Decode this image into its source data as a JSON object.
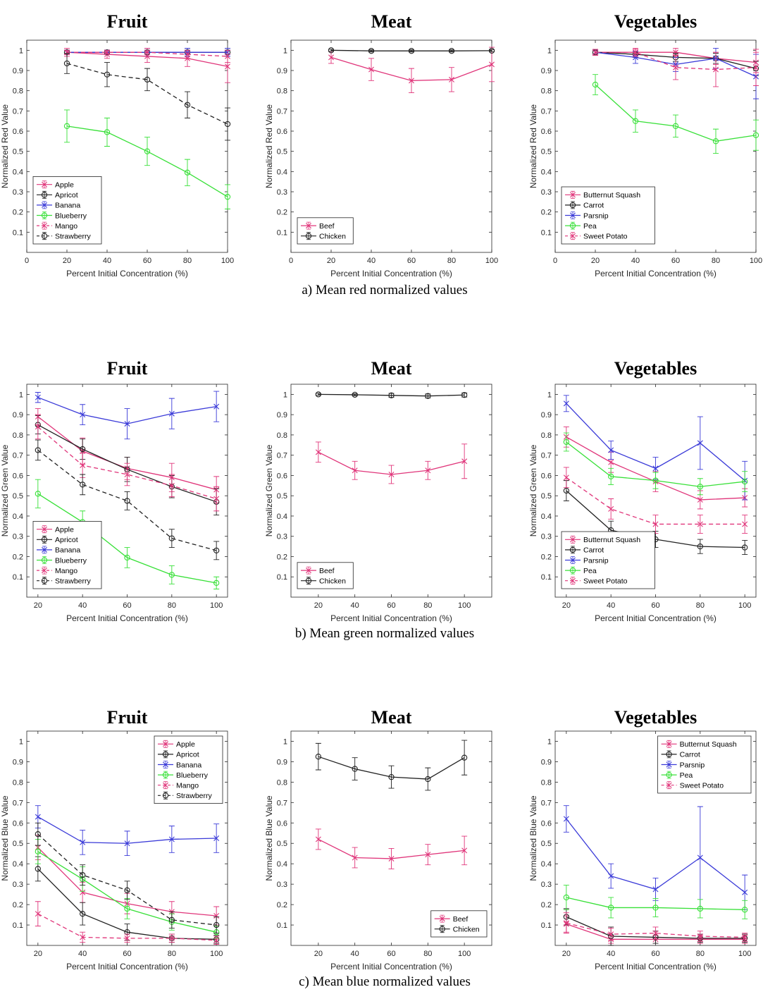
{
  "captions": [
    "a) Mean red normalized values",
    "b) Mean green normalized values",
    "c) Mean blue normalized values"
  ],
  "colors": {
    "Apple": "#e0357a",
    "Apricot": "#222222",
    "Banana": "#3a3ad8",
    "Blueberry": "#38e038",
    "Mango": "#e0357a",
    "Strawberry": "#222222",
    "Beef": "#e0357a",
    "Chicken": "#222222",
    "Butternut Squash": "#e0357a",
    "Carrot": "#222222",
    "Parsnip": "#3a3ad8",
    "Pea": "#38e038",
    "Sweet Potato": "#e0357a"
  },
  "chart_data": [
    {
      "type": "line",
      "title": "Fruit",
      "xlabel": "Percent Initial Concentration (%)",
      "ylabel": "Normalized Red Value",
      "xlim": [
        0,
        100
      ],
      "ylim": [
        0,
        1.05
      ],
      "xticks": [
        0,
        20,
        40,
        60,
        80,
        100
      ],
      "legend": "bottom-left",
      "x": [
        20,
        40,
        60,
        80,
        100
      ],
      "series": [
        {
          "name": "Apple",
          "values": [
            0.99,
            0.98,
            0.97,
            0.96,
            0.92
          ],
          "err": [
            0.02,
            0.02,
            0.03,
            0.04,
            0.08
          ],
          "marker": "x",
          "dash": false
        },
        {
          "name": "Apricot",
          "values": [
            0.99,
            0.99,
            0.99,
            0.99,
            0.99
          ],
          "err": [
            0.01,
            0.01,
            0.02,
            0.02,
            0.02
          ],
          "marker": "o",
          "dash": false
        },
        {
          "name": "Banana",
          "values": [
            0.99,
            0.99,
            0.99,
            0.99,
            0.99
          ],
          "err": [
            0.01,
            0.01,
            0.02,
            0.02,
            0.02
          ],
          "marker": "x",
          "dash": false
        },
        {
          "name": "Blueberry",
          "values": [
            0.625,
            0.595,
            0.5,
            0.395,
            0.275
          ],
          "err": [
            0.08,
            0.07,
            0.07,
            0.065,
            0.06
          ],
          "marker": "o",
          "dash": false
        },
        {
          "name": "Mango",
          "values": [
            0.99,
            0.99,
            0.99,
            0.98,
            0.97
          ],
          "err": [
            0.01,
            0.01,
            0.02,
            0.02,
            0.03
          ],
          "marker": "x",
          "dash": true
        },
        {
          "name": "Strawberry",
          "values": [
            0.935,
            0.88,
            0.855,
            0.73,
            0.635
          ],
          "err": [
            0.05,
            0.06,
            0.055,
            0.065,
            0.08
          ],
          "marker": "o",
          "dash": true
        }
      ]
    },
    {
      "type": "line",
      "title": "Meat",
      "xlabel": "Percent Initial Concentration (%)",
      "ylabel": "Normalized Red Value",
      "xlim": [
        0,
        100
      ],
      "ylim": [
        0,
        1.05
      ],
      "xticks": [
        0,
        20,
        40,
        60,
        80,
        100
      ],
      "legend": "bottom-left",
      "x": [
        20,
        40,
        60,
        80,
        100
      ],
      "series": [
        {
          "name": "Beef",
          "values": [
            0.965,
            0.905,
            0.85,
            0.855,
            0.93
          ],
          "err": [
            0.03,
            0.055,
            0.06,
            0.06,
            0.085
          ],
          "marker": "x",
          "dash": false
        },
        {
          "name": "Chicken",
          "values": [
            1.0,
            0.997,
            0.997,
            0.997,
            0.998
          ],
          "err": [
            0.005,
            0.005,
            0.005,
            0.005,
            0.005
          ],
          "marker": "o",
          "dash": false
        }
      ]
    },
    {
      "type": "line",
      "title": "Vegetables",
      "xlabel": "Percent Initial Concentration (%)",
      "ylabel": "Normalized Red Value",
      "xlim": [
        0,
        100
      ],
      "ylim": [
        0,
        1.05
      ],
      "xticks": [
        0,
        20,
        40,
        60,
        80,
        100
      ],
      "legend": "bottom-left",
      "x": [
        20,
        40,
        60,
        80,
        100
      ],
      "series": [
        {
          "name": "Butternut Squash",
          "values": [
            0.99,
            0.99,
            0.99,
            0.96,
            0.94
          ],
          "err": [
            0.01,
            0.015,
            0.02,
            0.03,
            0.05
          ],
          "marker": "x",
          "dash": false
        },
        {
          "name": "Carrot",
          "values": [
            0.99,
            0.98,
            0.965,
            0.96,
            0.91
          ],
          "err": [
            0.01,
            0.015,
            0.02,
            0.025,
            0.035
          ],
          "marker": "o",
          "dash": false
        },
        {
          "name": "Parsnip",
          "values": [
            0.99,
            0.965,
            0.93,
            0.96,
            0.87
          ],
          "err": [
            0.015,
            0.03,
            0.035,
            0.05,
            0.11
          ],
          "marker": "x",
          "dash": false
        },
        {
          "name": "Pea",
          "values": [
            0.83,
            0.65,
            0.625,
            0.55,
            0.58
          ],
          "err": [
            0.05,
            0.055,
            0.055,
            0.06,
            0.075
          ],
          "marker": "o",
          "dash": false
        },
        {
          "name": "Sweet Potato",
          "values": [
            0.99,
            0.99,
            0.915,
            0.905,
            0.915
          ],
          "err": [
            0.015,
            0.02,
            0.06,
            0.085,
            0.09
          ],
          "marker": "x",
          "dash": true
        }
      ]
    },
    {
      "type": "line",
      "title": "Fruit",
      "xlabel": "Percent Initial Concentration (%)",
      "ylabel": "Normalized Green Value",
      "xlim": [
        15,
        105
      ],
      "ylim": [
        0,
        1.05
      ],
      "xticks": [
        20,
        40,
        60,
        80,
        100
      ],
      "legend": "bottom-left",
      "x": [
        20,
        40,
        60,
        80,
        100
      ],
      "series": [
        {
          "name": "Apple",
          "values": [
            0.89,
            0.72,
            0.635,
            0.59,
            0.53
          ],
          "err": [
            0.04,
            0.065,
            0.055,
            0.07,
            0.065
          ],
          "marker": "x",
          "dash": false
        },
        {
          "name": "Apricot",
          "values": [
            0.85,
            0.73,
            0.63,
            0.545,
            0.47
          ],
          "err": [
            0.045,
            0.05,
            0.06,
            0.055,
            0.065
          ],
          "marker": "o",
          "dash": false
        },
        {
          "name": "Banana",
          "values": [
            0.985,
            0.9,
            0.855,
            0.905,
            0.94
          ],
          "err": [
            0.025,
            0.05,
            0.075,
            0.075,
            0.075
          ],
          "marker": "x",
          "dash": false
        },
        {
          "name": "Blueberry",
          "values": [
            0.51,
            0.37,
            0.195,
            0.11,
            0.07
          ],
          "err": [
            0.07,
            0.055,
            0.05,
            0.045,
            0.03
          ],
          "marker": "o",
          "dash": false
        },
        {
          "name": "Mango",
          "values": [
            0.84,
            0.65,
            0.605,
            0.55,
            0.485
          ],
          "err": [
            0.06,
            0.06,
            0.055,
            0.055,
            0.06
          ],
          "marker": "x",
          "dash": true
        },
        {
          "name": "Strawberry",
          "values": [
            0.725,
            0.555,
            0.475,
            0.29,
            0.23
          ],
          "err": [
            0.05,
            0.05,
            0.045,
            0.045,
            0.045
          ],
          "marker": "o",
          "dash": true
        }
      ]
    },
    {
      "type": "line",
      "title": "Meat",
      "xlabel": "Percent Initial Concentration (%)",
      "ylabel": "Normalized Green Value",
      "xlim": [
        5,
        115
      ],
      "ylim": [
        0,
        1.05
      ],
      "xticks": [
        20,
        40,
        60,
        80,
        100
      ],
      "legend": "bottom-left",
      "x": [
        20,
        40,
        60,
        80,
        100
      ],
      "series": [
        {
          "name": "Beef",
          "values": [
            0.715,
            0.625,
            0.605,
            0.625,
            0.67
          ],
          "err": [
            0.05,
            0.045,
            0.045,
            0.045,
            0.085
          ],
          "marker": "x",
          "dash": false
        },
        {
          "name": "Chicken",
          "values": [
            1.0,
            0.998,
            0.995,
            0.992,
            0.997
          ],
          "err": [
            0.005,
            0.005,
            0.01,
            0.01,
            0.01
          ],
          "marker": "o",
          "dash": false
        }
      ]
    },
    {
      "type": "line",
      "title": "Vegetables",
      "xlabel": "Percent Initial Concentration (%)",
      "ylabel": "Normalized Green Value",
      "xlim": [
        15,
        105
      ],
      "ylim": [
        0,
        1.05
      ],
      "xticks": [
        20,
        40,
        60,
        80,
        100
      ],
      "legend": "bottom-left",
      "x": [
        20,
        40,
        60,
        80,
        100
      ],
      "series": [
        {
          "name": "Butternut Squash",
          "values": [
            0.79,
            0.665,
            0.57,
            0.48,
            0.49
          ],
          "err": [
            0.05,
            0.05,
            0.05,
            0.045,
            0.045
          ],
          "marker": "x",
          "dash": false
        },
        {
          "name": "Carrot",
          "values": [
            0.525,
            0.33,
            0.285,
            0.25,
            0.245
          ],
          "err": [
            0.05,
            0.045,
            0.04,
            0.035,
            0.035
          ],
          "marker": "o",
          "dash": false
        },
        {
          "name": "Parsnip",
          "values": [
            0.955,
            0.725,
            0.635,
            0.76,
            0.575
          ],
          "err": [
            0.04,
            0.045,
            0.055,
            0.13,
            0.095
          ],
          "marker": "x",
          "dash": false
        },
        {
          "name": "Pea",
          "values": [
            0.765,
            0.595,
            0.575,
            0.545,
            0.57
          ],
          "err": [
            0.045,
            0.04,
            0.04,
            0.04,
            0.05
          ],
          "marker": "o",
          "dash": false
        },
        {
          "name": "Sweet Potato",
          "values": [
            0.59,
            0.435,
            0.36,
            0.36,
            0.36
          ],
          "err": [
            0.05,
            0.05,
            0.045,
            0.045,
            0.045
          ],
          "marker": "x",
          "dash": true
        }
      ]
    },
    {
      "type": "line",
      "title": "Fruit",
      "xlabel": "Percent Initial Concentration (%)",
      "ylabel": "Normalized Blue Value",
      "xlim": [
        15,
        105
      ],
      "ylim": [
        0,
        1.05
      ],
      "xticks": [
        20,
        40,
        60,
        80,
        100
      ],
      "legend": "top-right",
      "x": [
        20,
        40,
        60,
        80,
        100
      ],
      "series": [
        {
          "name": "Apple",
          "values": [
            0.48,
            0.26,
            0.205,
            0.165,
            0.145
          ],
          "err": [
            0.06,
            0.05,
            0.05,
            0.05,
            0.045
          ],
          "marker": "x",
          "dash": false
        },
        {
          "name": "Apricot",
          "values": [
            0.375,
            0.155,
            0.065,
            0.035,
            0.03
          ],
          "err": [
            0.06,
            0.055,
            0.04,
            0.02,
            0.02
          ],
          "marker": "o",
          "dash": false
        },
        {
          "name": "Banana",
          "values": [
            0.63,
            0.505,
            0.5,
            0.52,
            0.525
          ],
          "err": [
            0.055,
            0.06,
            0.06,
            0.065,
            0.07
          ],
          "marker": "x",
          "dash": false
        },
        {
          "name": "Blueberry",
          "values": [
            0.46,
            0.325,
            0.18,
            0.115,
            0.065
          ],
          "err": [
            0.06,
            0.06,
            0.05,
            0.04,
            0.03
          ],
          "marker": "o",
          "dash": false
        },
        {
          "name": "Mango",
          "values": [
            0.155,
            0.04,
            0.035,
            0.035,
            0.025
          ],
          "err": [
            0.06,
            0.025,
            0.02,
            0.02,
            0.02
          ],
          "marker": "x",
          "dash": true
        },
        {
          "name": "Strawberry",
          "values": [
            0.545,
            0.345,
            0.27,
            0.125,
            0.1
          ],
          "err": [
            0.055,
            0.05,
            0.045,
            0.04,
            0.04
          ],
          "marker": "o",
          "dash": true
        }
      ]
    },
    {
      "type": "line",
      "title": "Meat",
      "xlabel": "Percent Initial Concentration (%)",
      "ylabel": "Normalized Blue Value",
      "xlim": [
        5,
        115
      ],
      "ylim": [
        0,
        1.05
      ],
      "xticks": [
        20,
        40,
        60,
        80,
        100
      ],
      "legend": "bottom-right",
      "x": [
        20,
        40,
        60,
        80,
        100
      ],
      "series": [
        {
          "name": "Beef",
          "values": [
            0.52,
            0.43,
            0.425,
            0.445,
            0.465
          ],
          "err": [
            0.05,
            0.05,
            0.05,
            0.05,
            0.07
          ],
          "marker": "x",
          "dash": false
        },
        {
          "name": "Chicken",
          "values": [
            0.925,
            0.865,
            0.825,
            0.815,
            0.92
          ],
          "err": [
            0.065,
            0.055,
            0.055,
            0.055,
            0.085
          ],
          "marker": "o",
          "dash": false
        }
      ]
    },
    {
      "type": "line",
      "title": "Vegetables",
      "xlabel": "Percent Initial Concentration (%)",
      "ylabel": "Normalized Blue Value",
      "xlim": [
        15,
        105
      ],
      "ylim": [
        0,
        1.05
      ],
      "xticks": [
        20,
        40,
        60,
        80,
        100
      ],
      "legend": "top-right",
      "x": [
        20,
        40,
        60,
        80,
        100
      ],
      "series": [
        {
          "name": "Butternut Squash",
          "values": [
            0.105,
            0.03,
            0.03,
            0.03,
            0.03
          ],
          "err": [
            0.04,
            0.02,
            0.02,
            0.02,
            0.02
          ],
          "marker": "x",
          "dash": false
        },
        {
          "name": "Carrot",
          "values": [
            0.14,
            0.045,
            0.04,
            0.035,
            0.035
          ],
          "err": [
            0.04,
            0.045,
            0.03,
            0.02,
            0.02
          ],
          "marker": "o",
          "dash": false
        },
        {
          "name": "Parsnip",
          "values": [
            0.62,
            0.34,
            0.275,
            0.43,
            0.26
          ],
          "err": [
            0.065,
            0.06,
            0.055,
            0.25,
            0.085
          ],
          "marker": "x",
          "dash": false
        },
        {
          "name": "Pea",
          "values": [
            0.235,
            0.185,
            0.185,
            0.18,
            0.175
          ],
          "err": [
            0.06,
            0.05,
            0.045,
            0.045,
            0.045
          ],
          "marker": "o",
          "dash": false
        },
        {
          "name": "Sweet Potato",
          "values": [
            0.11,
            0.055,
            0.06,
            0.045,
            0.04
          ],
          "err": [
            0.05,
            0.03,
            0.03,
            0.025,
            0.02
          ],
          "marker": "x",
          "dash": true
        }
      ]
    }
  ]
}
